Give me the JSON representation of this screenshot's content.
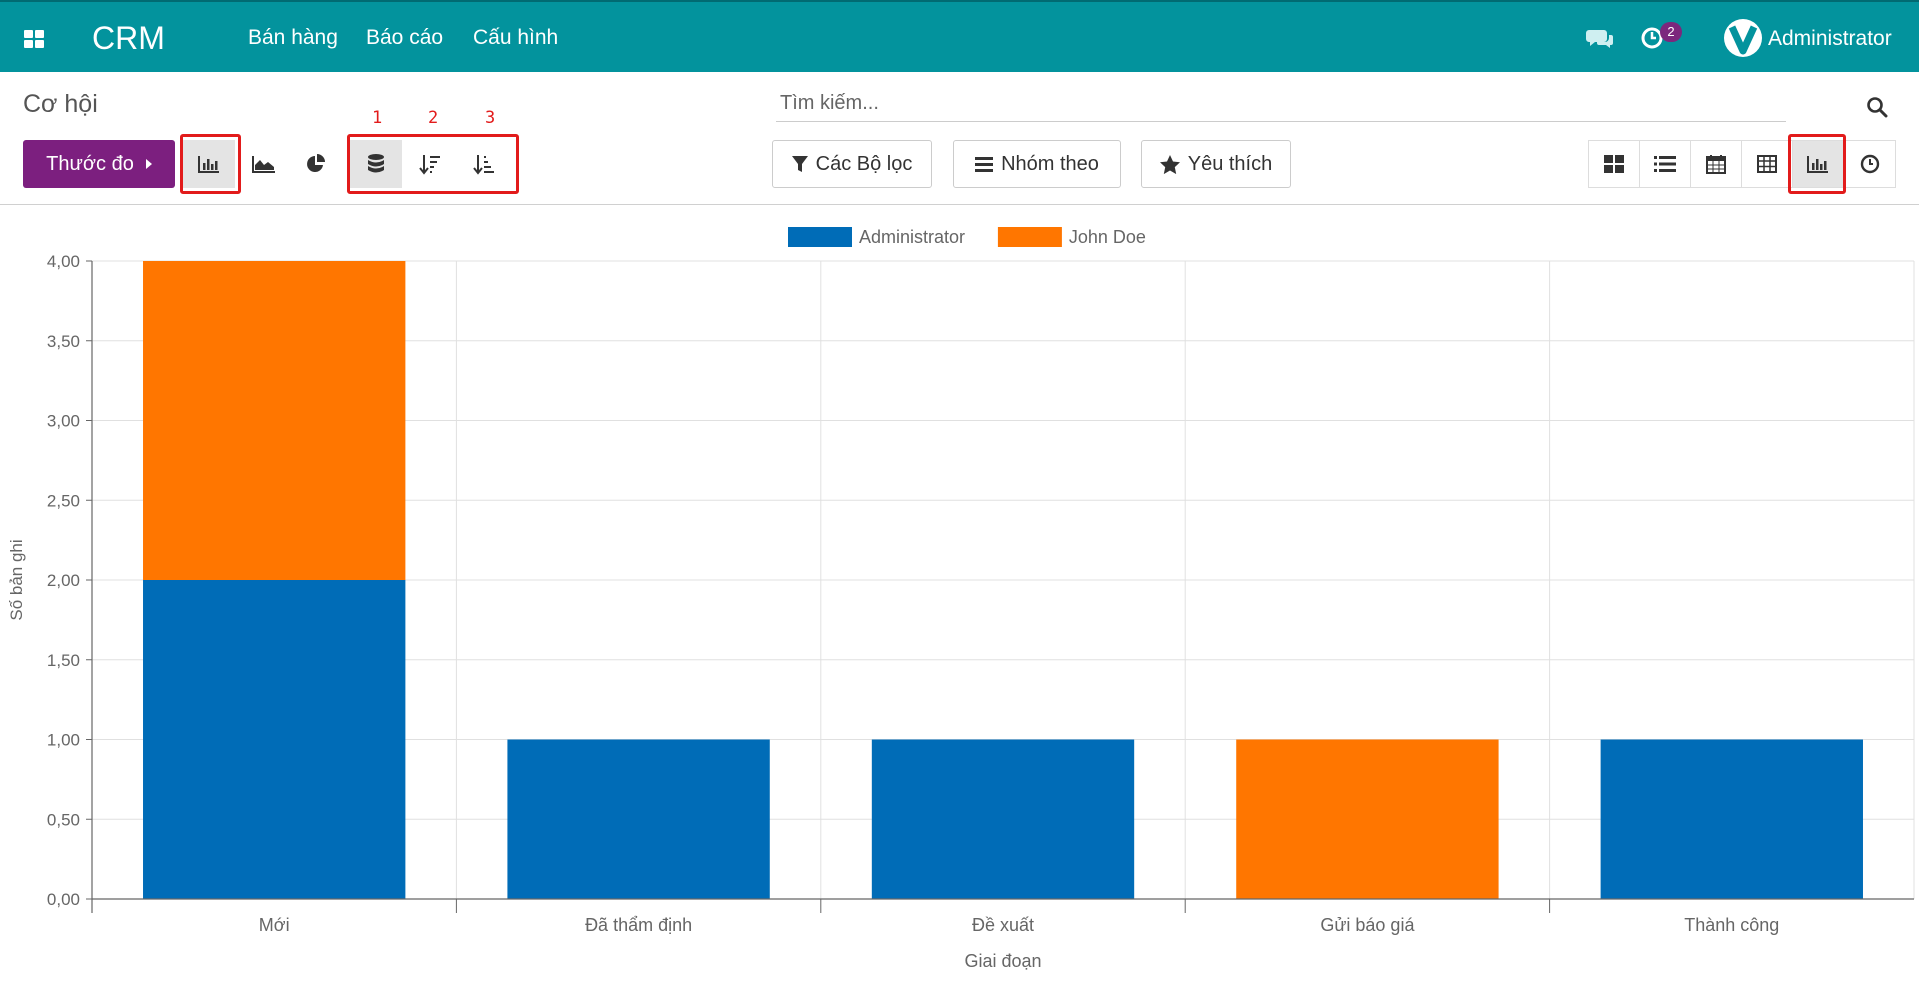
{
  "navbar": {
    "app_name": "CRM",
    "menu": [
      "Bán hàng",
      "Báo cáo",
      "Cấu hình"
    ],
    "activity_badge": "2",
    "user": "Administrator"
  },
  "control_panel": {
    "title": "Cơ hội",
    "measures_label": "Thước đo",
    "search_placeholder": "Tìm kiếm...",
    "filters_label": "Các Bộ lọc",
    "group_by_label": "Nhóm theo",
    "favorites_label": "Yêu thích",
    "annotations": [
      "1",
      "2",
      "3"
    ],
    "highlight_color": "#e21b1b"
  },
  "colors": {
    "navbar": "#03939d",
    "brand_button": "#7c1f7f",
    "badge": "#7c277d"
  },
  "chart_data": {
    "type": "bar",
    "stacked": true,
    "categories": [
      "Mới",
      "Đã thẩm định",
      "Đề xuất",
      "Gửi báo giá",
      "Thành công"
    ],
    "series": [
      {
        "name": "Administrator",
        "color": "#006cb7",
        "values": [
          2,
          1,
          1,
          0,
          1
        ]
      },
      {
        "name": "John Doe",
        "color": "#ff7600",
        "values": [
          2,
          0,
          0,
          1,
          0
        ]
      }
    ],
    "xlabel": "Giai đoạn",
    "ylabel": "Số bản ghi",
    "ylim": [
      0,
      4
    ],
    "yticks": [
      "0,00",
      "0,50",
      "1,00",
      "1,50",
      "2,00",
      "2,50",
      "3,00",
      "3,50",
      "4,00"
    ],
    "grid": true,
    "legend_position": "top"
  }
}
